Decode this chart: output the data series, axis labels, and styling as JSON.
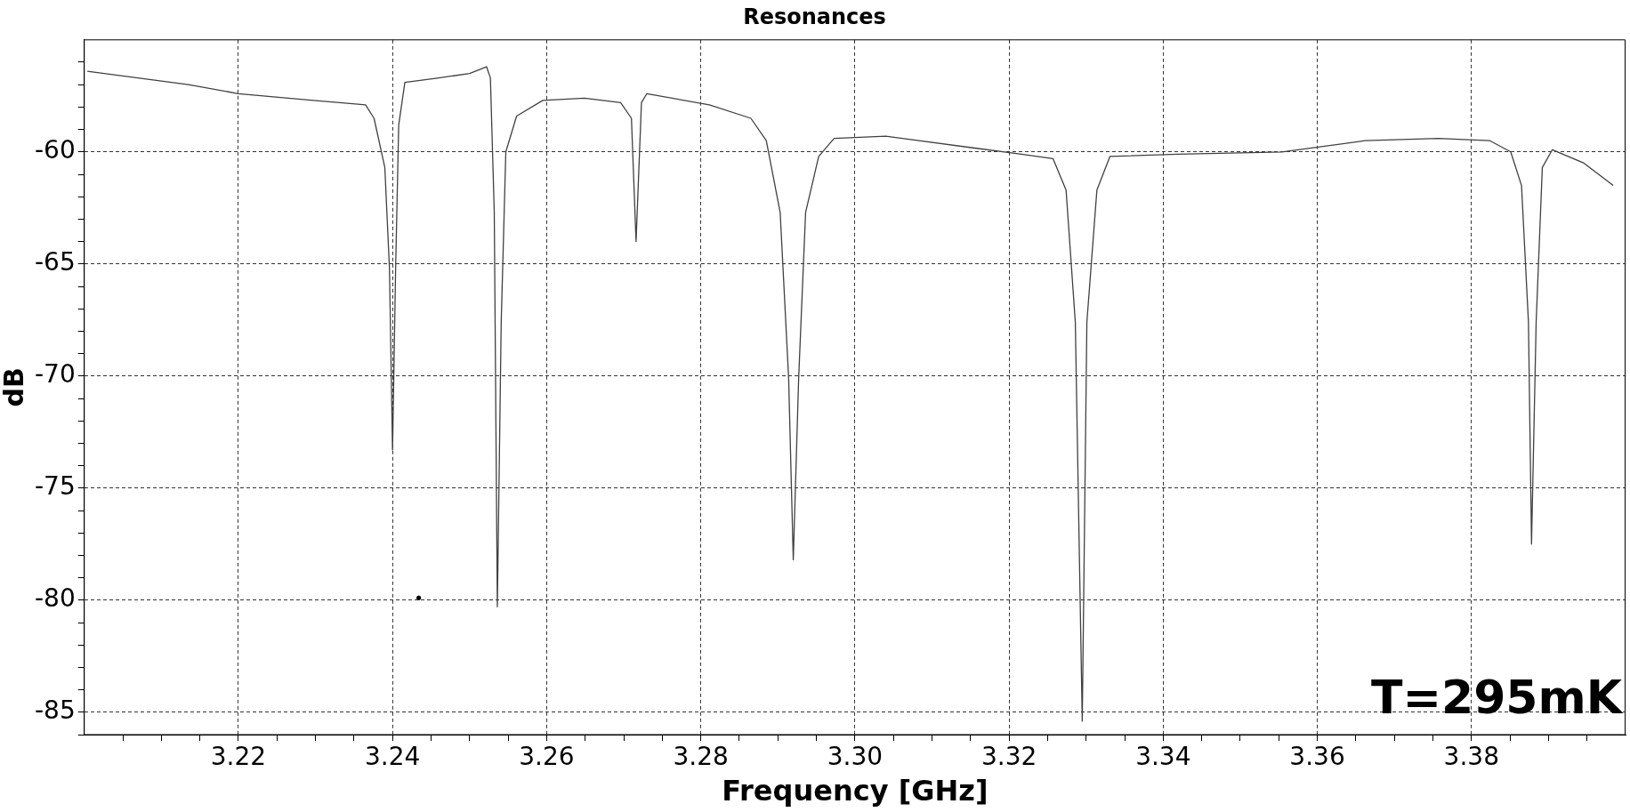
{
  "chart_data": {
    "type": "line",
    "title": "Resonances",
    "xlabel": "Frequency [GHz]",
    "ylabel": "dB",
    "annotations": [
      "T=295mK"
    ],
    "xlim": [
      3.2,
      3.4
    ],
    "ylim": [
      -86,
      -55
    ],
    "xticks": [
      {
        "value": 3.205,
        "label": null
      },
      {
        "value": 3.21,
        "label": null
      },
      {
        "value": 3.215,
        "label": null
      },
      {
        "value": 3.22,
        "label": "3.22"
      },
      {
        "value": 3.225,
        "label": null
      },
      {
        "value": 3.23,
        "label": null
      },
      {
        "value": 3.235,
        "label": null
      },
      {
        "value": 3.24,
        "label": "3.24"
      },
      {
        "value": 3.245,
        "label": null
      },
      {
        "value": 3.25,
        "label": null
      },
      {
        "value": 3.255,
        "label": null
      },
      {
        "value": 3.26,
        "label": "3.26"
      },
      {
        "value": 3.265,
        "label": null
      },
      {
        "value": 3.27,
        "label": null
      },
      {
        "value": 3.275,
        "label": null
      },
      {
        "value": 3.28,
        "label": "3.28"
      },
      {
        "value": 3.285,
        "label": null
      },
      {
        "value": 3.29,
        "label": null
      },
      {
        "value": 3.295,
        "label": null
      },
      {
        "value": 3.3,
        "label": "3.30"
      },
      {
        "value": 3.305,
        "label": null
      },
      {
        "value": 3.31,
        "label": null
      },
      {
        "value": 3.315,
        "label": null
      },
      {
        "value": 3.32,
        "label": "3.32"
      },
      {
        "value": 3.325,
        "label": null
      },
      {
        "value": 3.33,
        "label": null
      },
      {
        "value": 3.335,
        "label": null
      },
      {
        "value": 3.34,
        "label": "3.34"
      },
      {
        "value": 3.345,
        "label": null
      },
      {
        "value": 3.35,
        "label": null
      },
      {
        "value": 3.355,
        "label": null
      },
      {
        "value": 3.36,
        "label": "3.36"
      },
      {
        "value": 3.365,
        "label": null
      },
      {
        "value": 3.37,
        "label": null
      },
      {
        "value": 3.375,
        "label": null
      },
      {
        "value": 3.38,
        "label": "3.38"
      },
      {
        "value": 3.385,
        "label": null
      },
      {
        "value": 3.39,
        "label": null
      },
      {
        "value": 3.395,
        "label": null
      }
    ],
    "yticks": [
      {
        "value": -86,
        "label": null
      },
      -85,
      {
        "value": -84,
        "label": null
      },
      {
        "value": -83,
        "label": null
      },
      {
        "value": -82,
        "label": null
      },
      {
        "value": -81,
        "label": null
      },
      -80,
      {
        "value": -79,
        "label": null
      },
      {
        "value": -78,
        "label": null
      },
      {
        "value": -77,
        "label": null
      },
      {
        "value": -76,
        "label": null
      },
      -75,
      {
        "value": -74,
        "label": null
      },
      {
        "value": -73,
        "label": null
      },
      {
        "value": -72,
        "label": null
      },
      {
        "value": -71,
        "label": null
      },
      -70,
      {
        "value": -69,
        "label": null
      },
      {
        "value": -68,
        "label": null
      },
      {
        "value": -67,
        "label": null
      },
      {
        "value": -66,
        "label": null
      },
      -65,
      {
        "value": -64,
        "label": null
      },
      {
        "value": -63,
        "label": null
      },
      {
        "value": -62,
        "label": null
      },
      {
        "value": -61,
        "label": null
      },
      -60,
      {
        "value": -59,
        "label": null
      },
      {
        "value": -58,
        "label": null
      },
      {
        "value": -57,
        "label": null
      },
      {
        "value": -56,
        "label": null
      }
    ],
    "grid": true,
    "line_style": "solid",
    "series": [
      {
        "color": "#404040",
        "x": [
          3.2004,
          3.2135,
          3.22,
          3.2297,
          3.2365,
          3.2376,
          3.239,
          3.2396,
          3.24,
          3.2404,
          3.2408,
          3.2416,
          3.246,
          3.25,
          3.2522,
          3.2527,
          3.2532,
          3.2536,
          3.2541,
          3.2547,
          3.2561,
          3.2595,
          3.2649,
          3.2696,
          3.271,
          3.2716,
          3.2723,
          3.273,
          3.2811,
          3.2865,
          3.2885,
          3.2903,
          3.2914,
          3.292,
          3.2927,
          3.2936,
          3.2953,
          3.2973,
          3.304,
          3.3149,
          3.3216,
          3.3257,
          3.3274,
          3.3286,
          3.3295,
          3.3301,
          3.3314,
          3.3331,
          3.3419,
          3.3554,
          3.3662,
          3.3757,
          3.3824,
          3.3851,
          3.3865,
          3.3874,
          3.3878,
          3.3884,
          3.3892,
          3.3905,
          3.3946,
          3.3984
        ],
        "values": [
          -56.4,
          -57.0,
          -57.4,
          -57.7,
          -57.9,
          -58.5,
          -60.7,
          -65.2,
          -73.3,
          -65.2,
          -58.8,
          -56.9,
          -56.7,
          -56.5,
          -56.2,
          -56.7,
          -62.7,
          -80.3,
          -67.6,
          -60.0,
          -58.4,
          -57.7,
          -57.6,
          -57.8,
          -58.5,
          -64.0,
          -57.8,
          -57.4,
          -57.9,
          -58.5,
          -59.5,
          -62.7,
          -70.1,
          -78.2,
          -70.1,
          -62.7,
          -60.2,
          -59.4,
          -59.3,
          -59.8,
          -60.1,
          -60.3,
          -61.7,
          -67.6,
          -85.4,
          -67.6,
          -61.7,
          -60.2,
          -60.1,
          -60.0,
          -59.5,
          -59.4,
          -59.5,
          -60.0,
          -61.5,
          -67.6,
          -77.5,
          -67.6,
          -60.7,
          -59.9,
          -60.5,
          -61.5
        ]
      },
      {
        "type": "scatter",
        "color": "#000000",
        "x": [
          3.2434
        ],
        "values": [
          -79.9
        ]
      }
    ]
  }
}
